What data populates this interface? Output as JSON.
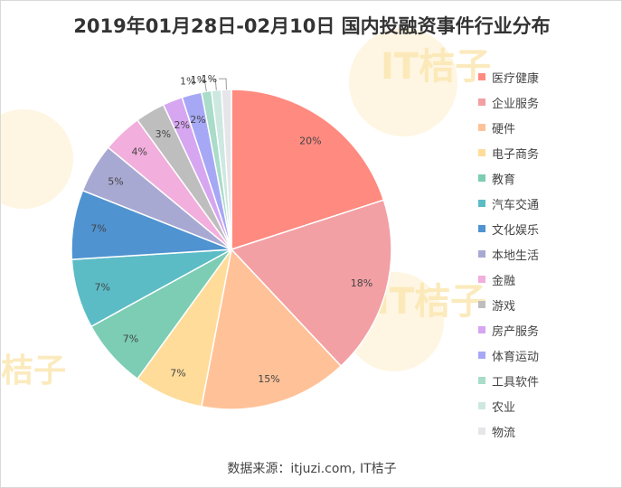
{
  "chart_data": {
    "type": "pie",
    "title": "2019年01月28日-02月10日  国内投融资事件行业分布",
    "slices": [
      {
        "label": "医疗健康",
        "value": 20,
        "display": "20%",
        "color": "#ff8a80"
      },
      {
        "label": "企业服务",
        "value": 18,
        "display": "18%",
        "color": "#f2a0a4"
      },
      {
        "label": "硬件",
        "value": 15,
        "display": "15%",
        "color": "#ffc298"
      },
      {
        "label": "电子商务",
        "value": 7,
        "display": "7%",
        "color": "#ffdc9a"
      },
      {
        "label": "教育",
        "value": 7,
        "display": "7%",
        "color": "#7ccdb4"
      },
      {
        "label": "汽车交通",
        "value": 7,
        "display": "7%",
        "color": "#5bbcc6"
      },
      {
        "label": "文化娱乐",
        "value": 7,
        "display": "7%",
        "color": "#4f93d1"
      },
      {
        "label": "本地生活",
        "value": 5,
        "display": "5%",
        "color": "#a8a9d3"
      },
      {
        "label": "金融",
        "value": 4,
        "display": "4%",
        "color": "#f2aedc"
      },
      {
        "label": "游戏",
        "value": 3,
        "display": "3%",
        "color": "#bebebe"
      },
      {
        "label": "房产服务",
        "value": 2,
        "display": "2%",
        "color": "#d6a6f1"
      },
      {
        "label": "体育运动",
        "value": 2,
        "display": "2%",
        "color": "#a6a8f5"
      },
      {
        "label": "工具软件",
        "value": 1,
        "display": "1%",
        "color": "#a9dcc9"
      },
      {
        "label": "农业",
        "value": 1,
        "display": "1%",
        "color": "#cde8e0"
      },
      {
        "label": "物流",
        "value": 1,
        "display": "1%",
        "color": "#e6e6ea"
      }
    ],
    "legend_position": "right"
  },
  "footer": {
    "source": "数据来源：itjuzi.com, IT桔子"
  },
  "watermark": {
    "text": "IT桔子",
    "side_text": "桔子"
  }
}
